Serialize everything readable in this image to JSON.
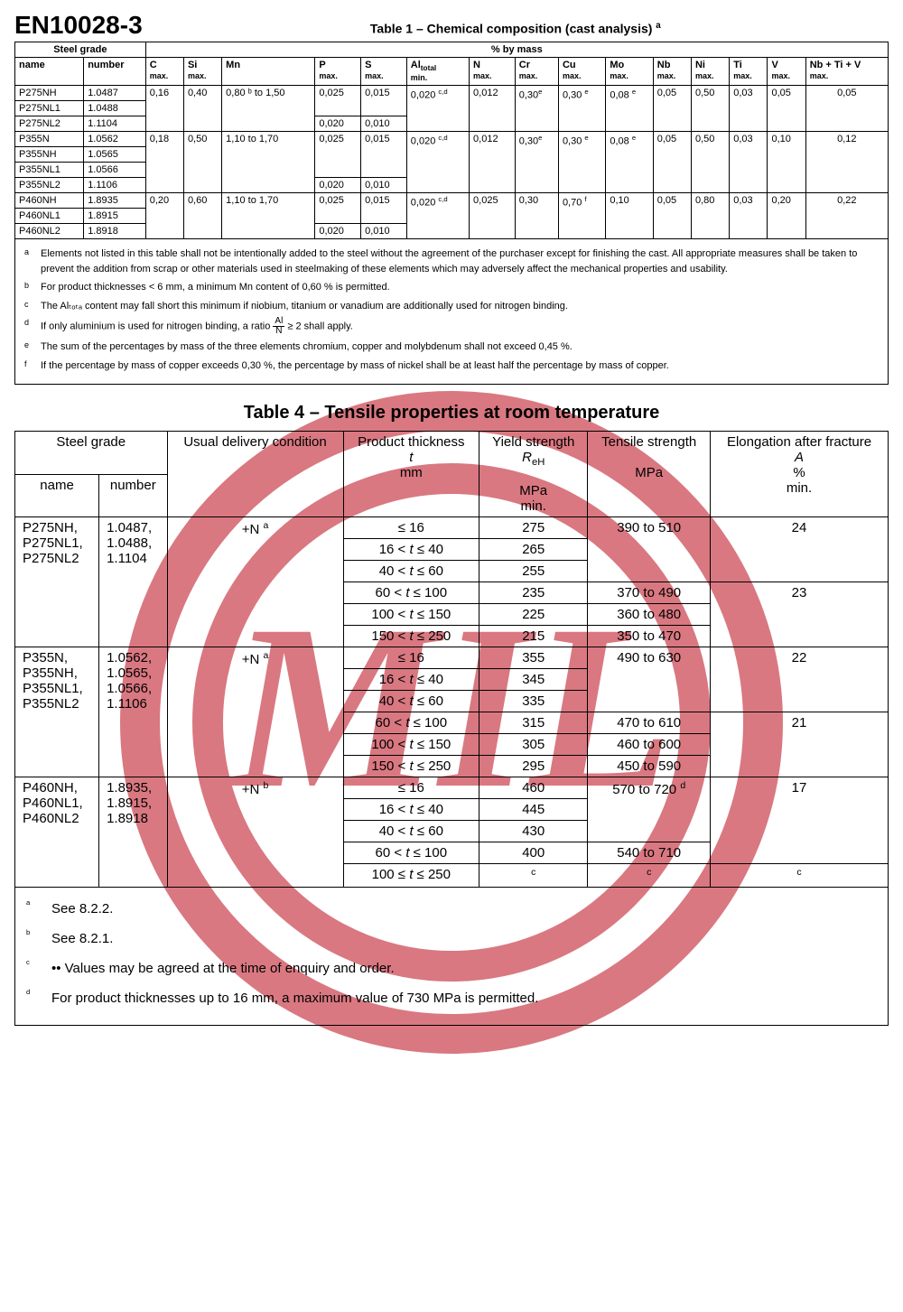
{
  "standard": "EN10028-3",
  "watermark_color": "#c1202e",
  "table1": {
    "title": "Table 1 – Chemical composition (cast analysis)",
    "title_sup": "a",
    "group_headers": {
      "steel_grade": "Steel grade",
      "by_mass": "% by mass"
    },
    "sub_headers": {
      "name": "name",
      "number": "number"
    },
    "elements": [
      {
        "k": "C",
        "q": "max."
      },
      {
        "k": "Si",
        "q": "max."
      },
      {
        "k": "Mn",
        "q": ""
      },
      {
        "k": "P",
        "q": "max."
      },
      {
        "k": "S",
        "q": "max."
      },
      {
        "k": "Al",
        "sub": "total",
        "q": "min."
      },
      {
        "k": "N",
        "q": "max."
      },
      {
        "k": "Cr",
        "q": "max."
      },
      {
        "k": "Cu",
        "q": "max."
      },
      {
        "k": "Mo",
        "q": "max."
      },
      {
        "k": "Nb",
        "q": "max."
      },
      {
        "k": "Ni",
        "q": "max."
      },
      {
        "k": "Ti",
        "q": "max."
      },
      {
        "k": "V",
        "q": "max."
      },
      {
        "k": "Nb + Ti + V",
        "q": "max."
      }
    ],
    "groups": [
      {
        "rows": [
          {
            "name": "P275NH",
            "num": "1.0487"
          },
          {
            "name": "P275NL1",
            "num": "1.0488"
          },
          {
            "name": "P275NL2",
            "num": "1.1104"
          }
        ],
        "C": "0,16",
        "Si": "0,40",
        "Mn": "0,80 ᵇ to 1,50",
        "main": {
          "P": "0,025",
          "S": "0,015",
          "Al": "0,020 ",
          "Alsup": "c,d",
          "N": "0,012",
          "Cr": "0,30",
          "Crsup": "e",
          "Cu": "0,30 ",
          "Cusup": "e",
          "Mo": "0,08 ",
          "Mosup": "e",
          "Nb": "0,05",
          "Ni": "0,50",
          "Ti": "0,03",
          "V": "0,05",
          "NbTiV": "0,05"
        },
        "last": {
          "P": "0,020",
          "S": "0,010"
        }
      },
      {
        "rows": [
          {
            "name": "P355N",
            "num": "1.0562"
          },
          {
            "name": "P355NH",
            "num": "1.0565"
          },
          {
            "name": "P355NL1",
            "num": "1.0566"
          },
          {
            "name": "P355NL2",
            "num": "1.1106"
          }
        ],
        "C": "0,18",
        "Si": "0,50",
        "Mn": "1,10 to 1,70",
        "main": {
          "P": "0,025",
          "S": "0,015",
          "Al": "0,020 ",
          "Alsup": "c,d",
          "N": "0,012",
          "Cr": "0,30",
          "Crsup": "e",
          "Cu": "0,30 ",
          "Cusup": "e",
          "Mo": "0,08 ",
          "Mosup": "e",
          "Nb": "0,05",
          "Ni": "0,50",
          "Ti": "0,03",
          "V": "0,10",
          "NbTiV": "0,12"
        },
        "last": {
          "P": "0,020",
          "S": "0,010"
        }
      },
      {
        "rows": [
          {
            "name": "P460NH",
            "num": "1.8935"
          },
          {
            "name": "P460NL1",
            "num": "1.8915"
          },
          {
            "name": "P460NL2",
            "num": "1.8918"
          }
        ],
        "C": "0,20",
        "Si": "0,60",
        "Mn": "1,10 to 1,70",
        "main": {
          "P": "0,025",
          "S": "0,015",
          "Al": "0,020 ",
          "Alsup": "c,d",
          "N": "0,025",
          "Cr": "0,30",
          "Crsup": "",
          "Cu": "0,70 ",
          "Cusup": "f",
          "Mo": "0,10",
          "Mosup": "",
          "Nb": "0,05",
          "Ni": "0,80",
          "Ti": "0,03",
          "V": "0,20",
          "NbTiV": "0,22"
        },
        "last": {
          "P": "0,020",
          "S": "0,010"
        }
      }
    ],
    "notes": [
      {
        "s": "a",
        "t": "Elements not listed in this table shall not be intentionally added to the steel without the agreement of the purchaser except for finishing the cast. All appropriate measures shall be taken to prevent the addition from scrap or other materials used in steelmaking of these elements which may adversely affect the mechanical properties and usability."
      },
      {
        "s": "b",
        "t": "For product thicknesses < 6 mm, a minimum Mn content of 0,60 % is permitted."
      },
      {
        "s": "c",
        "t": "The Alₜₒₜₐ content may fall short this minimum if niobium, titanium or vanadium are additionally used for nitrogen binding."
      },
      {
        "s": "d",
        "t": "If only aluminium is used for nitrogen binding, a ratio  Al / N  ≥ 2 shall apply.",
        "frac": true
      },
      {
        "s": "e",
        "t": "The sum of the percentages by mass of the three elements chromium, copper and molybdenum shall not exceed 0,45 %."
      },
      {
        "s": "f",
        "t": "If the percentage by mass of copper exceeds 0,30 %, the percentage by mass of nickel shall be at least half the percentage by mass of copper."
      }
    ]
  },
  "table4": {
    "title": "Table 4 – Tensile properties at room temperature",
    "headers": {
      "steel_grade": "Steel grade",
      "usual": "Usual delivery condition",
      "thick1": "Product thickness",
      "thick2": "t",
      "thick3": "mm",
      "yield1": "Yield strength",
      "yield2": "R",
      "yield2sub": "eH",
      "yield3": "MPa",
      "yield4": "min.",
      "tens1": "Tensile strength",
      "tens2": "MPa",
      "elong1": "Elongation after fracture",
      "elong2": "A",
      "elong3": "%",
      "elong4": "min.",
      "name": "name",
      "number": "number"
    },
    "groups": [
      {
        "names": "P275NH, P275NL1, P275NL2",
        "nums": "1.0487, 1.0488, 1.1104",
        "cond": "+N",
        "csup": "a",
        "rows": [
          {
            "t": "≤ 16",
            "y": "275",
            "ts": "390 to 510",
            "ts_span": 3,
            "e": "24",
            "e_span": 3
          },
          {
            "t": "16 < t ≤ 40",
            "y": "265"
          },
          {
            "t": "40 < t ≤ 60",
            "y": "255"
          },
          {
            "t": "60 < t ≤ 100",
            "y": "235",
            "ts": "370 to 490",
            "e": "23",
            "e_span": 3
          },
          {
            "t": "100 < t ≤ 150",
            "y": "225",
            "ts": "360 to 480"
          },
          {
            "t": "150 < t ≤ 250",
            "y": "215",
            "ts": "350 to 470"
          }
        ]
      },
      {
        "names": "P355N, P355NH, P355NL1, P355NL2",
        "nums": "1.0562, 1.0565, 1.0566, 1.1106",
        "cond": "+N",
        "csup": "a",
        "rows": [
          {
            "t": "≤ 16",
            "y": "355",
            "ts": "490 to 630",
            "ts_span": 3,
            "e": "22",
            "e_span": 3
          },
          {
            "t": "16 < t ≤ 40",
            "y": "345"
          },
          {
            "t": "40 < t ≤ 60",
            "y": "335"
          },
          {
            "t": "60 < t ≤ 100",
            "y": "315",
            "ts": "470 to 610",
            "e": "21",
            "e_span": 3
          },
          {
            "t": "100 < t ≤ 150",
            "y": "305",
            "ts": "460 to 600"
          },
          {
            "t": "150 < t ≤ 250",
            "y": "295",
            "ts": "450 to 590"
          }
        ]
      },
      {
        "names": "P460NH, P460NL1, P460NL2",
        "nums": "1.8935, 1.8915, 1.8918",
        "cond": "+N",
        "csup": "b",
        "rows": [
          {
            "t": "≤ 16",
            "y": "460",
            "ts": "570 to 720 ",
            "ts_sup": "d",
            "ts_span": 3,
            "e": "17",
            "e_span": 4
          },
          {
            "t": "16 < t ≤ 40",
            "y": "445"
          },
          {
            "t": "40 < t ≤ 60",
            "y": "430"
          },
          {
            "t": "60 < t ≤ 100",
            "y": "400",
            "ts": "540 to 710"
          },
          {
            "t": "100 ≤ t ≤ 250",
            "y": "c",
            "ts": "c",
            "e": "c",
            "sup_all": true
          }
        ]
      }
    ],
    "notes": [
      {
        "s": "a",
        "t": "See 8.2.2."
      },
      {
        "s": "b",
        "t": "See 8.2.1."
      },
      {
        "s": "c",
        "t": "•• Values may be agreed at the time of enquiry and order."
      },
      {
        "s": "d",
        "t": "For product thicknesses up to 16 mm, a maximum value of 730 MPa is permitted."
      }
    ]
  }
}
